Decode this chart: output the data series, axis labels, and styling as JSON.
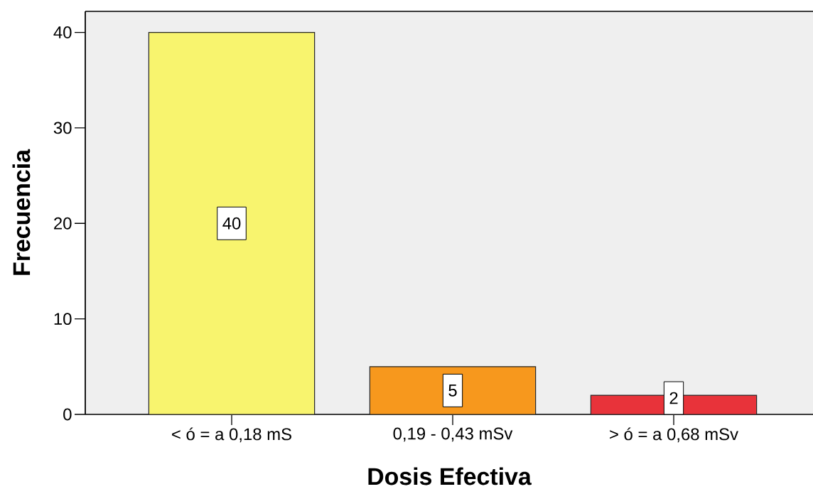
{
  "chart_data": {
    "type": "bar",
    "xlabel": "Dosis Efectiva",
    "ylabel": "Frecuencia",
    "categories": [
      "< ó = a 0,18 mS",
      "0,19 - 0,43 mSv",
      "> ó = a 0,68 mSv"
    ],
    "values": [
      40,
      5,
      2
    ],
    "colors": [
      "#f8f46e",
      "#f7981d",
      "#e8333a"
    ],
    "ylim": [
      0,
      42.2
    ],
    "yticks": [
      0,
      10,
      20,
      30,
      40
    ],
    "data_labels": true
  }
}
